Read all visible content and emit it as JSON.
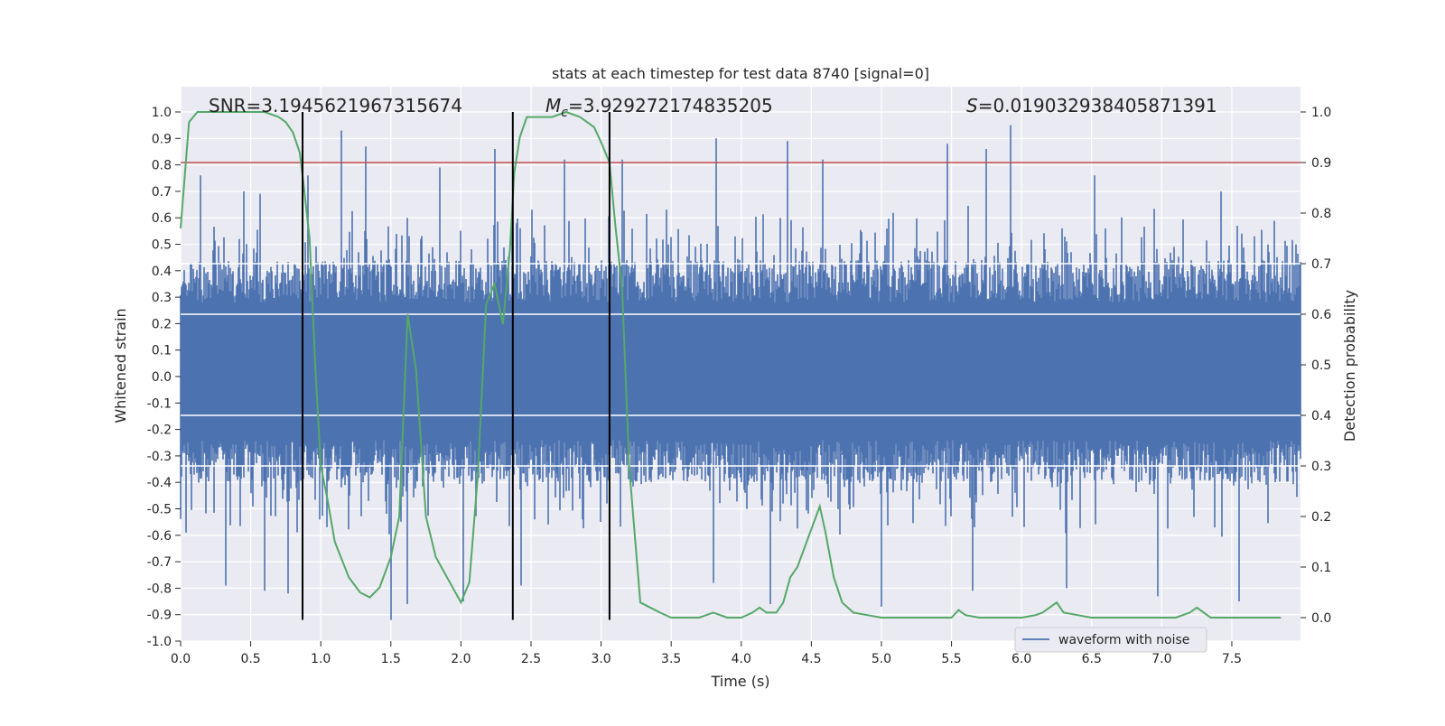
{
  "chart_data": {
    "type": "line",
    "title": "stats at each timestep for test data 8740 [signal=0]",
    "xlabel": "Time (s)",
    "ylabel": "Whitened strain",
    "y2label": "Detection probability",
    "xlim": [
      0.0,
      7.99
    ],
    "ylim": [
      -1.0,
      1.0
    ],
    "y2lim": [
      -0.05,
      1.05
    ],
    "x_ticks": [
      "0.0",
      "0.5",
      "1.0",
      "1.5",
      "2.0",
      "2.5",
      "3.0",
      "3.5",
      "4.0",
      "4.5",
      "5.0",
      "5.5",
      "6.0",
      "6.5",
      "7.0",
      "7.5"
    ],
    "y_ticks": [
      "1.0",
      "0.9",
      "0.8",
      "0.7",
      "0.6",
      "0.5",
      "0.4",
      "0.3",
      "0.2",
      "0.1",
      "0.0",
      "-0.1",
      "-0.2",
      "-0.3",
      "-0.4",
      "-0.5",
      "-0.6",
      "-0.7",
      "-0.8",
      "-0.9",
      "-1.0"
    ],
    "y2_ticks": [
      "1.0",
      "0.9",
      "0.8",
      "0.7",
      "0.6",
      "0.5",
      "0.4",
      "0.3",
      "0.2",
      "0.1",
      "0.0"
    ],
    "grid": true,
    "legend_placement": "lower-right",
    "annotations": {
      "snr": "SNR=3.1945621967315674",
      "mc_symbol": "M",
      "mc_sub": "c",
      "mc_value": "=3.929272174835205",
      "s_symbol": "S",
      "s_value": "=0.019032938405871391"
    },
    "series": [
      {
        "name": "waveform with noise",
        "color": "#4c72b0",
        "kind": "dense noise",
        "envelope_typical": [
          -0.35,
          0.4
        ],
        "peaks": [
          [
            0.14,
            0.76
          ],
          [
            0.45,
            0.7
          ],
          [
            0.57,
            0.69
          ],
          [
            0.91,
            0.76
          ],
          [
            1.15,
            0.93
          ],
          [
            1.32,
            0.87
          ],
          [
            1.85,
            0.79
          ],
          [
            2.24,
            0.86
          ],
          [
            2.74,
            0.82
          ],
          [
            3.15,
            0.82
          ],
          [
            3.82,
            0.9
          ],
          [
            4.33,
            0.89
          ],
          [
            4.58,
            0.82
          ],
          [
            5.47,
            0.88
          ],
          [
            5.75,
            0.86
          ],
          [
            5.92,
            0.95
          ],
          [
            6.52,
            0.76
          ],
          [
            7.42,
            0.7
          ]
        ],
        "troughs": [
          [
            0.32,
            -0.79
          ],
          [
            0.6,
            -0.81
          ],
          [
            0.77,
            -0.82
          ],
          [
            1.5,
            -0.92
          ],
          [
            1.62,
            -0.86
          ],
          [
            2.02,
            -0.85
          ],
          [
            2.43,
            -0.79
          ],
          [
            3.8,
            -0.78
          ],
          [
            4.21,
            -0.86
          ],
          [
            5.0,
            -0.87
          ],
          [
            5.65,
            -0.81
          ],
          [
            6.32,
            -0.8
          ],
          [
            6.97,
            -0.83
          ],
          [
            7.55,
            -0.85
          ]
        ]
      },
      {
        "name": "",
        "color": "#55a868",
        "axis": "right",
        "x": [
          0.0,
          0.06,
          0.12,
          0.2,
          0.3,
          0.45,
          0.6,
          0.7,
          0.75,
          0.8,
          0.85,
          0.88,
          0.92,
          0.96,
          1.0,
          1.05,
          1.1,
          1.2,
          1.28,
          1.35,
          1.42,
          1.5,
          1.56,
          1.62,
          1.68,
          1.75,
          1.82,
          1.9,
          2.0,
          2.06,
          2.12,
          2.18,
          2.24,
          2.3,
          2.35,
          2.38,
          2.42,
          2.47,
          2.55,
          2.65,
          2.75,
          2.85,
          2.95,
          3.0,
          3.06,
          3.1,
          3.15,
          3.2,
          3.28,
          3.35,
          3.42,
          3.5,
          3.6,
          3.7,
          3.8,
          3.9,
          4.0,
          4.08,
          4.13,
          4.18,
          4.25,
          4.3,
          4.35,
          4.4,
          4.48,
          4.52,
          4.56,
          4.6,
          4.66,
          4.72,
          4.8,
          4.9,
          5.0,
          5.1,
          5.2,
          5.3,
          5.4,
          5.5,
          5.55,
          5.6,
          5.7,
          5.8,
          5.9,
          6.0,
          6.1,
          6.15,
          6.2,
          6.25,
          6.3,
          6.4,
          6.5,
          6.6,
          6.7,
          6.8,
          6.9,
          7.0,
          7.1,
          7.2,
          7.25,
          7.3,
          7.35,
          7.5,
          7.7,
          7.85
        ],
        "values": [
          0.77,
          0.98,
          1.0,
          1.0,
          1.0,
          1.0,
          1.0,
          0.99,
          0.98,
          0.96,
          0.92,
          0.85,
          0.75,
          0.5,
          0.3,
          0.23,
          0.15,
          0.08,
          0.05,
          0.04,
          0.06,
          0.12,
          0.2,
          0.6,
          0.49,
          0.2,
          0.12,
          0.08,
          0.03,
          0.07,
          0.28,
          0.62,
          0.66,
          0.58,
          0.73,
          0.88,
          0.95,
          0.99,
          0.99,
          0.99,
          1.0,
          0.99,
          0.97,
          0.94,
          0.9,
          0.78,
          0.65,
          0.3,
          0.03,
          0.02,
          0.01,
          0.0,
          0.0,
          0.0,
          0.01,
          0.0,
          0.0,
          0.01,
          0.02,
          0.01,
          0.01,
          0.03,
          0.08,
          0.1,
          0.16,
          0.19,
          0.22,
          0.17,
          0.08,
          0.03,
          0.01,
          0.005,
          0.0,
          0.0,
          0.0,
          0.0,
          0.0,
          0.0,
          0.015,
          0.005,
          0.0,
          0.0,
          0.0,
          0.0,
          0.005,
          0.01,
          0.02,
          0.03,
          0.01,
          0.005,
          0.0,
          0.0,
          0.0,
          0.0,
          0.0,
          0.0,
          0.0,
          0.01,
          0.02,
          0.01,
          0.0,
          0.0,
          0.0,
          0.0
        ]
      },
      {
        "name": "",
        "color": "#c44e52",
        "axis": "right",
        "kind": "threshold",
        "value": 0.9
      }
    ],
    "vertical_lines_x": [
      0.87,
      2.37,
      3.06
    ]
  }
}
